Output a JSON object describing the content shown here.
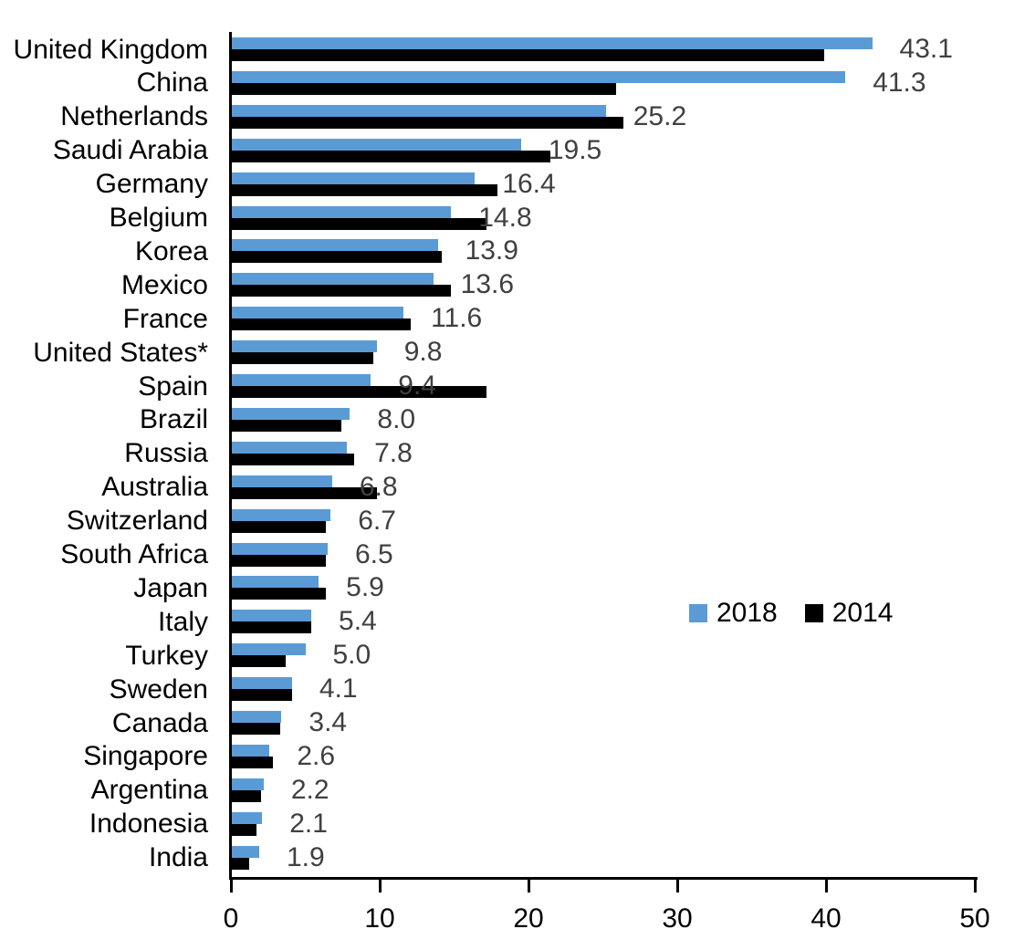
{
  "chart_data": {
    "type": "bar",
    "orientation": "horizontal",
    "title": "",
    "xlabel": "",
    "ylabel": "",
    "xlim": [
      0,
      50
    ],
    "x_ticks": [
      "0",
      "10",
      "20",
      "30",
      "40",
      "50"
    ],
    "grid": false,
    "legend_position": "middle-right",
    "categories": [
      "United Kingdom",
      "China",
      "Netherlands",
      "Saudi Arabia",
      "Germany",
      "Belgium",
      "Korea",
      "Mexico",
      "France",
      "United States*",
      "Spain",
      "Brazil",
      "Russia",
      "Australia",
      "Switzerland",
      "South Africa",
      "Japan",
      "Italy",
      "Turkey",
      "Sweden",
      "Canada",
      "Singapore",
      "Argentina",
      "Indonesia",
      "India"
    ],
    "series": [
      {
        "name": "2018",
        "color": "#5B9BD5",
        "values": [
          43.1,
          41.3,
          25.2,
          19.5,
          16.4,
          14.8,
          13.9,
          13.6,
          11.6,
          9.8,
          9.4,
          8.0,
          7.8,
          6.8,
          6.7,
          6.5,
          5.9,
          5.4,
          5.0,
          4.1,
          3.4,
          2.6,
          2.2,
          2.1,
          1.9
        ]
      },
      {
        "name": "2014",
        "color": "#000000",
        "values": [
          39.9,
          25.9,
          26.4,
          21.5,
          17.9,
          17.2,
          14.2,
          14.8,
          12.1,
          9.6,
          17.2,
          7.4,
          8.3,
          9.8,
          6.4,
          6.4,
          6.4,
          5.4,
          3.7,
          4.1,
          3.3,
          2.8,
          2.0,
          1.7,
          1.2
        ]
      }
    ],
    "data_labels": [
      "43.1",
      "41.3",
      "25.2",
      "19.5",
      "16.4",
      "14.8",
      "13.9",
      "13.6",
      "11.6",
      "9.8",
      "9.4",
      "8.0",
      "7.8",
      "6.8",
      "6.7",
      "6.5",
      "5.9",
      "5.4",
      "5.0",
      "4.1",
      "3.4",
      "2.6",
      "2.2",
      "2.1",
      "1.9"
    ],
    "data_labels_series": "2018"
  },
  "colors": {
    "bar_2018": "#5B9BD5",
    "bar_2014": "#000000",
    "value_label": "#404040",
    "axis": "#000000",
    "background": "#ffffff"
  }
}
